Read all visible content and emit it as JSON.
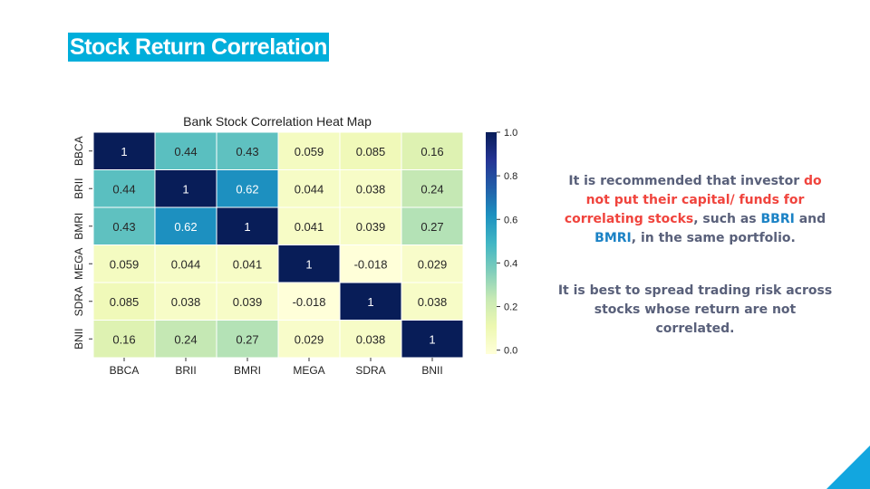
{
  "slide": {
    "title": "Stock Return Correlation"
  },
  "notes": {
    "p1_a": "It is recommended that investor ",
    "p1_b": "do not put their capital/ funds for correlating stocks",
    "p1_c": ", such as ",
    "p1_d": "BBRI",
    "p1_e": " and ",
    "p1_f": "BMRI",
    "p1_g": ", in the same portfolio.",
    "p2": "It is best to spread trading risk across stocks whose return are not correlated."
  },
  "colors": {
    "title_bg": "#00aedb",
    "highlight_red": "#f0443d",
    "highlight_blue": "#1b82c5",
    "corner_accent": "#12a6df"
  },
  "chart_data": {
    "type": "heatmap",
    "title": "Bank Stock Correlation Heat Map",
    "x_labels": [
      "BBCA",
      "BRII",
      "BMRI",
      "MEGA",
      "SDRA",
      "BNII"
    ],
    "y_labels": [
      "BBCA",
      "BRII",
      "BMRI",
      "MEGA",
      "SDRA",
      "BNII"
    ],
    "values": [
      [
        1,
        0.44,
        0.43,
        0.059,
        0.085,
        0.16
      ],
      [
        0.44,
        1,
        0.62,
        0.044,
        0.038,
        0.24
      ],
      [
        0.43,
        0.62,
        1,
        0.041,
        0.039,
        0.27
      ],
      [
        0.059,
        0.044,
        0.041,
        1,
        -0.018,
        0.029
      ],
      [
        0.085,
        0.038,
        0.039,
        -0.018,
        1,
        0.038
      ],
      [
        0.16,
        0.24,
        0.27,
        0.029,
        0.038,
        1
      ]
    ],
    "cell_labels": [
      [
        "1",
        "0.44",
        "0.43",
        "0.059",
        "0.085",
        "0.16"
      ],
      [
        "0.44",
        "1",
        "0.62",
        "0.044",
        "0.038",
        "0.24"
      ],
      [
        "0.43",
        "0.62",
        "1",
        "0.041",
        "0.039",
        "0.27"
      ],
      [
        "0.059",
        "0.044",
        "0.041",
        "1",
        "-0.018",
        "0.029"
      ],
      [
        "0.085",
        "0.038",
        "0.039",
        "-0.018",
        "1",
        "0.038"
      ],
      [
        "0.16",
        "0.24",
        "0.27",
        "0.029",
        "0.038",
        "1"
      ]
    ],
    "colormap": "YlGnBu",
    "colorbar": {
      "range": [
        -0.018,
        1.0
      ],
      "ticks": [
        0.0,
        0.2,
        0.4,
        0.6,
        0.8,
        1.0
      ],
      "tick_labels": [
        "0.0",
        "0.2",
        "0.4",
        "0.6",
        "0.8",
        "1.0"
      ]
    }
  }
}
